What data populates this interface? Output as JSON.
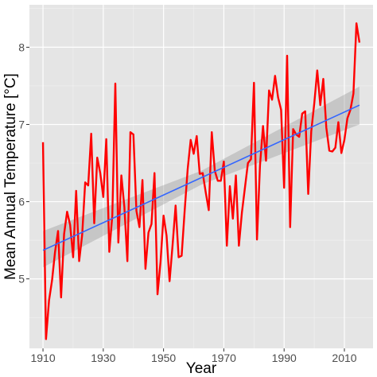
{
  "chart_data": {
    "type": "line",
    "xlabel": "Year",
    "ylabel": "Mean Annual Temperature [°C]",
    "xlim": [
      1905.5,
      2019.5
    ],
    "ylim": [
      4.1,
      8.55
    ],
    "x_ticks": [
      1910,
      1930,
      1950,
      1970,
      1990,
      2010
    ],
    "y_ticks": [
      5,
      6,
      7,
      8
    ],
    "grid": true,
    "background_color": "#e5e5e5",
    "series": [
      {
        "kind": "observed",
        "color": "#ff0000",
        "x": [
          1910,
          1911,
          1912,
          1913,
          1914,
          1915,
          1916,
          1917,
          1918,
          1919,
          1920,
          1921,
          1922,
          1923,
          1924,
          1925,
          1926,
          1927,
          1928,
          1929,
          1930,
          1931,
          1932,
          1933,
          1934,
          1935,
          1936,
          1937,
          1938,
          1939,
          1940,
          1941,
          1942,
          1943,
          1944,
          1945,
          1946,
          1947,
          1948,
          1949,
          1950,
          1951,
          1952,
          1953,
          1954,
          1955,
          1956,
          1957,
          1958,
          1959,
          1960,
          1961,
          1962,
          1963,
          1964,
          1965,
          1966,
          1967,
          1968,
          1969,
          1970,
          1971,
          1972,
          1973,
          1974,
          1975,
          1976,
          1977,
          1978,
          1979,
          1980,
          1981,
          1982,
          1983,
          1984,
          1985,
          1986,
          1987,
          1988,
          1989,
          1990,
          1991,
          1992,
          1993,
          1994,
          1995,
          1996,
          1997,
          1998,
          1999,
          2000,
          2001,
          2002,
          2003,
          2004,
          2005,
          2006,
          2007,
          2008,
          2009,
          2010,
          2011,
          2012,
          2013,
          2014,
          2015
        ],
        "y": [
          6.77,
          4.22,
          4.72,
          4.98,
          5.35,
          5.62,
          4.76,
          5.58,
          5.87,
          5.7,
          5.28,
          6.14,
          5.23,
          5.57,
          6.25,
          6.21,
          6.88,
          5.72,
          6.57,
          6.37,
          6.06,
          6.81,
          5.35,
          5.82,
          7.53,
          5.47,
          6.34,
          5.93,
          5.23,
          6.9,
          6.87,
          5.88,
          5.67,
          6.28,
          5.13,
          5.6,
          5.71,
          6.37,
          4.8,
          5.22,
          5.82,
          5.56,
          4.97,
          5.44,
          5.95,
          5.28,
          5.3,
          5.88,
          6.42,
          6.8,
          6.62,
          6.85,
          6.36,
          6.37,
          6.12,
          5.89,
          6.9,
          6.4,
          6.27,
          6.27,
          6.52,
          5.43,
          6.2,
          5.78,
          6.34,
          5.43,
          5.86,
          6.18,
          6.5,
          6.55,
          7.54,
          5.51,
          6.47,
          6.98,
          6.53,
          7.44,
          7.32,
          7.63,
          7.35,
          7.19,
          6.18,
          7.89,
          5.67,
          6.94,
          6.87,
          6.84,
          7.14,
          7.17,
          6.1,
          6.91,
          7.27,
          7.7,
          7.25,
          7.59,
          6.96,
          6.66,
          6.65,
          6.7,
          7.03,
          6.63,
          6.8,
          7.08,
          7.19,
          7.4,
          8.31,
          8.06
        ]
      },
      {
        "kind": "trend",
        "color": "#3366ff",
        "x": [
          1910,
          2015
        ],
        "y": [
          5.37,
          7.25
        ],
        "band_color": "#999999",
        "band_lower": [
          5.15,
          7.0
        ],
        "band_upper": [
          5.62,
          7.49
        ],
        "band_middle_x": 1962.5,
        "band_middle_lower": [
          6.22
        ],
        "band_middle_upper": [
          6.4
        ]
      }
    ]
  }
}
